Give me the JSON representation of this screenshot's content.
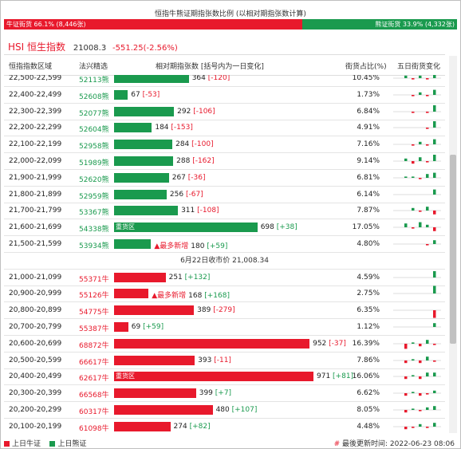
{
  "title": "恒指牛熊证期指张数比例 (以相对期指张数计算)",
  "ratio": {
    "bull_label": "牛证街货 66.1% (8,446张)",
    "bull_share": 0.661,
    "bear_label": "熊证街货 33.9% (4,332张)",
    "bear_share": 0.339
  },
  "index": {
    "name": "HSI 恒生指数",
    "value": "21008.3",
    "change": "-551.25(-2.56%)"
  },
  "headers": {
    "range": "恒指指数区域",
    "code": "法兴精选",
    "contracts": "相对期指张数 [括号内为一日变化]",
    "share": "街货占比(%)",
    "trend": "五日街货变化"
  },
  "colors": {
    "bull": "#e8192c",
    "bear": "#1a9a4e"
  },
  "max_contracts": 971,
  "bear_rows": [
    {
      "range": "22,500-22,599",
      "code": "52113熊",
      "contracts": 364,
      "change": "[-120]",
      "share": "10.45%",
      "spark": [
        2,
        -1,
        2,
        -1,
        5
      ]
    },
    {
      "range": "22,400-22,499",
      "code": "52608熊",
      "contracts": 67,
      "change": "[-53]",
      "share": "1.73%",
      "spark": [
        0,
        -1,
        2,
        -1,
        4
      ]
    },
    {
      "range": "22,300-22,399",
      "code": "52077熊",
      "contracts": 292,
      "change": "[-106]",
      "share": "6.84%",
      "spark": [
        0,
        -1,
        0,
        -1,
        5
      ]
    },
    {
      "range": "22,200-22,299",
      "code": "52604熊",
      "contracts": 184,
      "change": "[-153]",
      "share": "4.91%",
      "spark": [
        0,
        0,
        0,
        -1,
        5
      ]
    },
    {
      "range": "22,100-22,199",
      "code": "52958熊",
      "contracts": 284,
      "change": "[-100]",
      "share": "7.16%",
      "spark": [
        0,
        -1,
        2,
        -1,
        4
      ]
    },
    {
      "range": "22,000-22,099",
      "code": "51989熊",
      "contracts": 288,
      "change": "[-162]",
      "share": "9.14%",
      "spark": [
        2,
        -2,
        3,
        -1,
        5
      ]
    },
    {
      "range": "21,900-21,999",
      "code": "52620熊",
      "contracts": 267,
      "change": "[-36]",
      "share": "6.81%",
      "spark": [
        1,
        1,
        -1,
        3,
        4
      ]
    },
    {
      "range": "21,800-21,899",
      "code": "52959熊",
      "contracts": 256,
      "change": "[-67]",
      "share": "6.14%",
      "spark": [
        0,
        0,
        0,
        0,
        4
      ]
    },
    {
      "range": "21,700-21,799",
      "code": "53367熊",
      "contracts": 311,
      "change": "[-108]",
      "share": "7.87%",
      "spark": [
        0,
        2,
        -1,
        3,
        -3
      ]
    },
    {
      "range": "21,600-21,699",
      "code": "54338熊",
      "contracts": 698,
      "change": "[+38]",
      "share": "17.05%",
      "spark": [
        3,
        -1,
        4,
        2,
        -3
      ],
      "tag": "重货区"
    },
    {
      "range": "21,500-21,599",
      "code": "53934熊",
      "contracts": 180,
      "change": "[+59]",
      "share": "4.80%",
      "spark": [
        0,
        0,
        0,
        -1,
        3
      ],
      "tag": "▲最多新增"
    }
  ],
  "separator": "6月22日收市价 21,008.34",
  "bull_rows": [
    {
      "range": "21,000-21,099",
      "code": "55371牛",
      "contracts": 251,
      "change": "[+132]",
      "share": "4.59%",
      "spark": [
        0,
        0,
        0,
        0,
        5
      ]
    },
    {
      "range": "20,900-20,999",
      "code": "55126牛",
      "contracts": 168,
      "change": "[+168]",
      "share": "2.75%",
      "spark": [
        0,
        0,
        0,
        0,
        6
      ],
      "tag": "▲最多新增"
    },
    {
      "range": "20,800-20,899",
      "code": "54775牛",
      "contracts": 389,
      "change": "[-279]",
      "share": "6.35%",
      "spark": [
        0,
        0,
        0,
        0,
        -6
      ]
    },
    {
      "range": "20,700-20,799",
      "code": "55387牛",
      "contracts": 69,
      "change": "[+59]",
      "share": "1.12%",
      "spark": [
        0,
        0,
        0,
        0,
        3
      ]
    },
    {
      "range": "20,600-20,699",
      "code": "68872牛",
      "contracts": 952,
      "change": "[-37]",
      "share": "16.39%",
      "spark": [
        -4,
        1,
        -2,
        3,
        -1
      ]
    },
    {
      "range": "20,500-20,599",
      "code": "66617牛",
      "contracts": 393,
      "change": "[-11]",
      "share": "7.86%",
      "spark": [
        -2,
        1,
        -2,
        3,
        -1
      ]
    },
    {
      "range": "20,400-20,499",
      "code": "62617牛",
      "contracts": 971,
      "change": "[+81]",
      "share": "16.06%",
      "spark": [
        -2,
        1,
        -2,
        3,
        3
      ],
      "tag": "重货区"
    },
    {
      "range": "20,300-20,399",
      "code": "66568牛",
      "contracts": 399,
      "change": "[+7]",
      "share": "6.62%",
      "spark": [
        -2,
        1,
        -2,
        -1,
        2
      ]
    },
    {
      "range": "20,200-20,299",
      "code": "60317牛",
      "contracts": 480,
      "change": "[+107]",
      "share": "8.05%",
      "spark": [
        -2,
        1,
        -1,
        2,
        3
      ]
    },
    {
      "range": "20,100-20,199",
      "code": "61098牛",
      "contracts": 274,
      "change": "[+82]",
      "share": "4.48%",
      "spark": [
        -2,
        -1,
        2,
        -1,
        3
      ]
    }
  ],
  "legend": {
    "bull": "上日牛证",
    "bear": "上日熊证"
  },
  "update": {
    "mark": "#",
    "text": "最後更新时间: 2022-06-23 08:06"
  }
}
